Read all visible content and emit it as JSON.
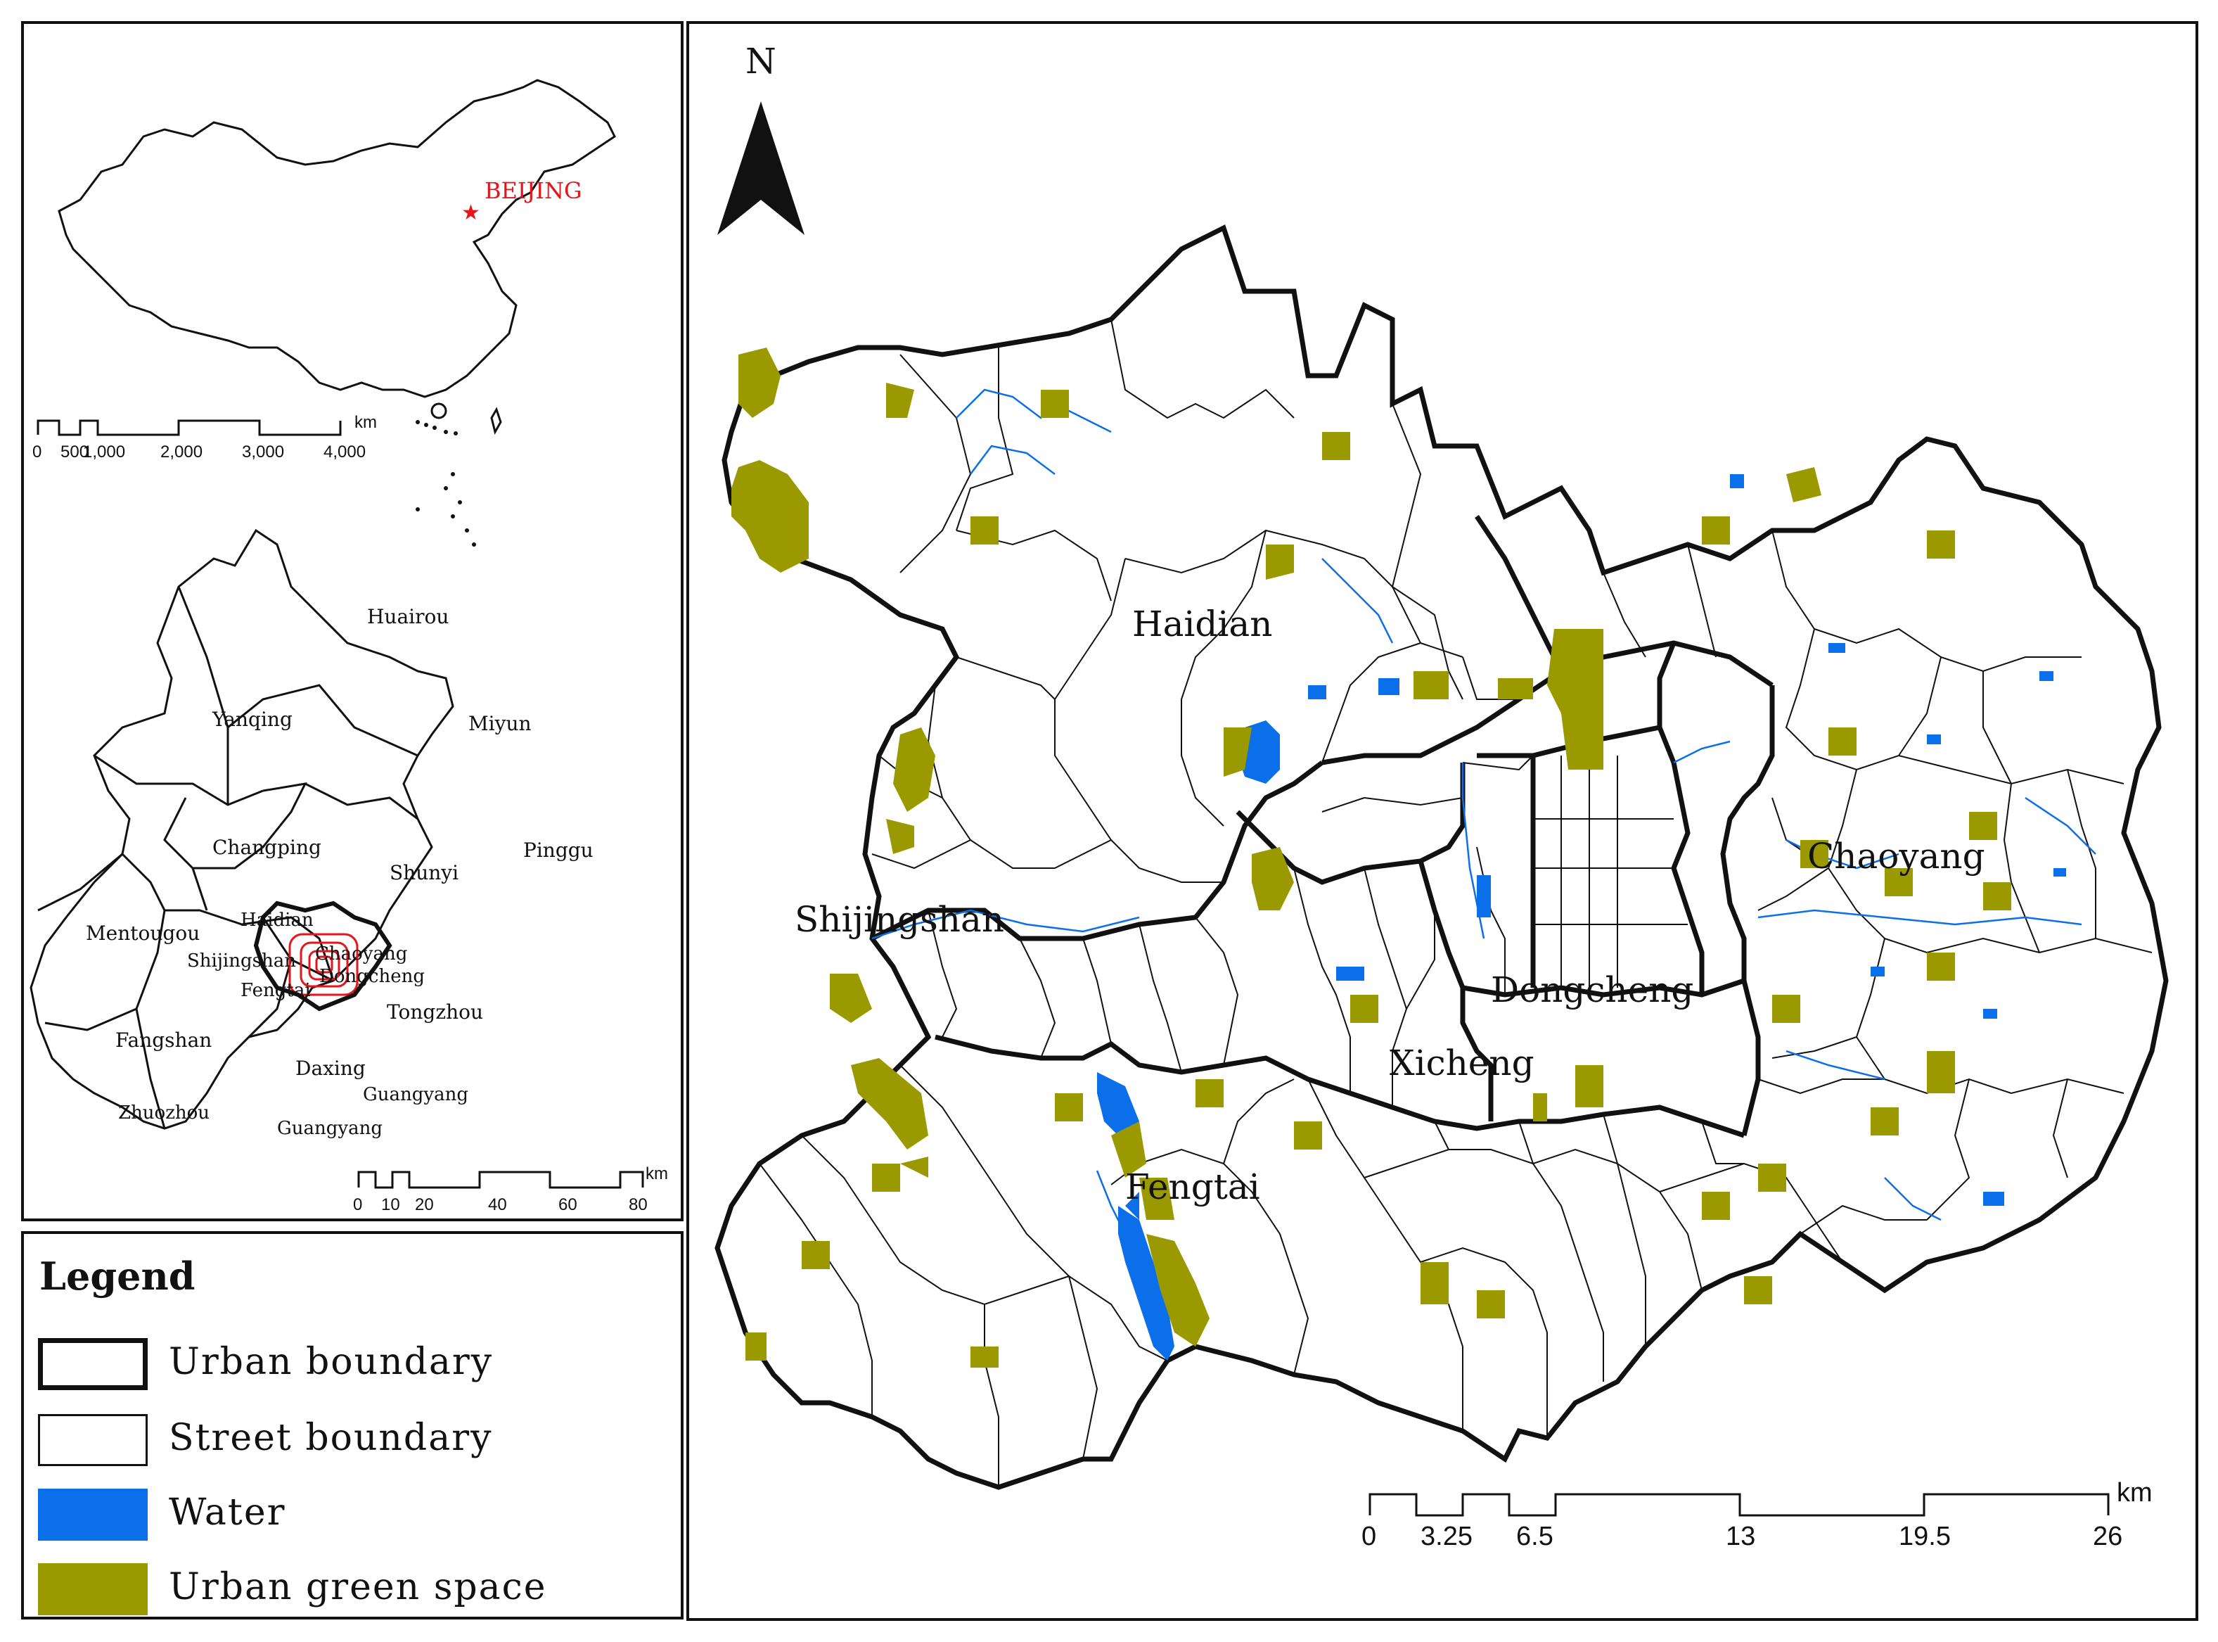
{
  "inset_china": {
    "location_label": "BEIJING",
    "scale_unit": "km",
    "scale_ticks": [
      "0",
      "500",
      "1,000",
      "2,000",
      "3,000",
      "4,000"
    ]
  },
  "inset_beijing": {
    "districts": [
      "Huairou",
      "Yanqing",
      "Miyun",
      "Changping",
      "Shunyi",
      "Pinggu",
      "Mentougou",
      "Haidian",
      "Shijingshan",
      "Chaoyang",
      "Dongcheng",
      "Fengtai",
      "Tongzhou",
      "Fangshan",
      "Daxing",
      "Guangyang",
      "Zhuozhou",
      "Guangyang"
    ],
    "scale_unit": "km",
    "scale_ticks": [
      "0",
      "10",
      "20",
      "40",
      "60",
      "80"
    ]
  },
  "legend": {
    "title": "Legend",
    "items": [
      {
        "label": "Urban boundary",
        "swatch": "thick-outline"
      },
      {
        "label": "Street boundary",
        "swatch": "thin-outline"
      },
      {
        "label": "Water",
        "swatch": "fill",
        "color": "#0a6fe8"
      },
      {
        "label": "Urban green space",
        "swatch": "fill",
        "color": "#9a9a00"
      }
    ]
  },
  "main_map": {
    "north_label": "N",
    "districts": [
      "Haidian",
      "Chaoyang",
      "Shijingshan",
      "Dongcheng",
      "Xicheng",
      "Fengtai"
    ],
    "scale_unit": "km",
    "scale_ticks": [
      "0",
      "3.25",
      "6.5",
      "13",
      "19.5",
      "26"
    ],
    "colors": {
      "water": "#0a6fe8",
      "green": "#9a9a00",
      "inset_highlight": "#e8141a"
    }
  }
}
